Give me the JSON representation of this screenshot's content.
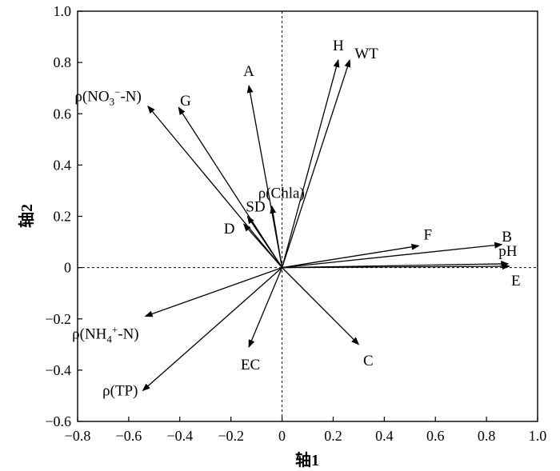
{
  "chart_data": {
    "type": "scatter",
    "subtype": "biplot-vectors",
    "xlabel": "轴1",
    "ylabel": "轴2",
    "xlim": [
      -0.8,
      1.0
    ],
    "ylim": [
      -0.6,
      1.0
    ],
    "xticks": [
      -0.8,
      -0.6,
      -0.4,
      -0.2,
      0,
      0.2,
      0.4,
      0.6,
      0.8,
      1.0
    ],
    "xtick_labels": [
      "−0.8",
      "−0.6",
      "−0.4",
      "−0.2",
      "0",
      "0.2",
      "0.4",
      "0.6",
      "0.8",
      "1.0"
    ],
    "yticks": [
      -0.6,
      -0.4,
      -0.2,
      0,
      0.2,
      0.4,
      0.6,
      0.8,
      1.0
    ],
    "ytick_labels": [
      "−0.6",
      "−0.4",
      "−0.2",
      "0",
      "0.2",
      "0.4",
      "0.6",
      "0.8",
      "1.0"
    ],
    "zero_lines": true,
    "grid": false,
    "vectors": [
      {
        "label": "H",
        "x": 0.22,
        "y": 0.81
      },
      {
        "label": "WT",
        "x": 0.265,
        "y": 0.81
      },
      {
        "label": "A",
        "x": -0.13,
        "y": 0.71
      },
      {
        "label": "ρ(NO3⁻-N)",
        "x": -0.525,
        "y": 0.63
      },
      {
        "label": "G",
        "x": -0.405,
        "y": 0.625
      },
      {
        "label": "ρ(Chla)",
        "x": -0.04,
        "y": 0.24
      },
      {
        "label": "SD",
        "x": -0.135,
        "y": 0.2
      },
      {
        "label": "D",
        "x": -0.15,
        "y": 0.17
      },
      {
        "label": "F",
        "x": 0.535,
        "y": 0.085
      },
      {
        "label": "B",
        "x": 0.86,
        "y": 0.09
      },
      {
        "label": "pH",
        "x": 0.885,
        "y": 0.015
      },
      {
        "label": "E",
        "x": 0.89,
        "y": 0.005
      },
      {
        "label": "ρ(NH4⁺-N)",
        "x": -0.535,
        "y": -0.19
      },
      {
        "label": "EC",
        "x": -0.13,
        "y": -0.31
      },
      {
        "label": "C",
        "x": 0.3,
        "y": -0.3
      },
      {
        "label": "ρ(TP)",
        "x": -0.545,
        "y": -0.48
      }
    ]
  }
}
